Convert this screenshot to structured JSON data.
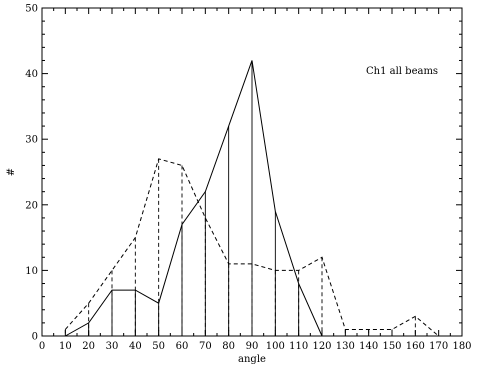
{
  "chart_data": {
    "type": "line",
    "annotation": "Ch1 all beams",
    "xlabel": "angle",
    "ylabel": "#",
    "xlim": [
      0,
      180
    ],
    "ylim": [
      0,
      50
    ],
    "xticks": [
      0,
      10,
      20,
      30,
      40,
      50,
      60,
      70,
      80,
      90,
      100,
      110,
      120,
      130,
      140,
      150,
      160,
      170,
      180
    ],
    "yticks": [
      0,
      10,
      20,
      30,
      40,
      50
    ],
    "grid": false,
    "series": [
      {
        "style": "solid",
        "render": "histogram-with-drop-lines",
        "x": [
          10,
          20,
          30,
          40,
          50,
          60,
          70,
          80,
          90,
          100,
          110,
          120
        ],
        "y": [
          0,
          2,
          7,
          7,
          5,
          17,
          22,
          32,
          42,
          19,
          8,
          0
        ]
      },
      {
        "style": "dashed",
        "render": "histogram-with-drop-lines",
        "x": [
          10,
          20,
          30,
          40,
          50,
          60,
          70,
          80,
          90,
          100,
          110,
          120,
          130,
          140,
          150,
          160,
          170
        ],
        "y": [
          1,
          5,
          10,
          15,
          27,
          26,
          18,
          11,
          11,
          10,
          10,
          12,
          1,
          1,
          1,
          3,
          0
        ]
      }
    ]
  }
}
